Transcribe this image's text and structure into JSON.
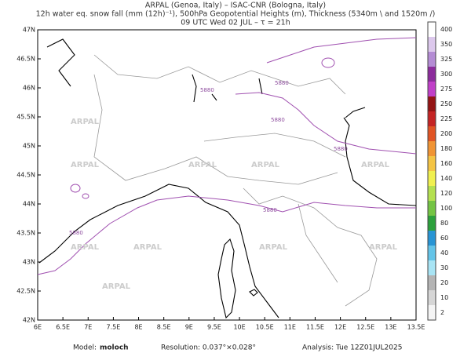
{
  "header": {
    "line1": "ARPAL (Genoa, Italy)  –  ISAC-CNR (Bologna, Italy)",
    "line2": "12h water eq. snow fall (mm (12h)⁻¹), 500hPa Geopotential Heights (m), Thickness (5340m \\ and 1520m /)",
    "line3": "09 UTC Wed 02 JUL  –  τ = 21h"
  },
  "map": {
    "xticks": [
      "6E",
      "6.5E",
      "7E",
      "7.5E",
      "8E",
      "8.5E",
      "9E",
      "9.5E",
      "10E",
      "10.5E",
      "11E",
      "11.5E",
      "12E",
      "12.5E",
      "13E",
      "13.5E"
    ],
    "yticks": [
      "42N",
      "42.5N",
      "43N",
      "43.5N",
      "44N",
      "44.5N",
      "45N",
      "45.5N",
      "46N",
      "46.5N",
      "47N"
    ],
    "contour_labels": [
      "5880",
      "5880",
      "5880",
      "5880",
      "5880",
      "5880"
    ],
    "watermark": "ARPAL"
  },
  "colorbar": {
    "labels": [
      2,
      10,
      20,
      30,
      40,
      60,
      80,
      100,
      120,
      140,
      160,
      180,
      200,
      225,
      250,
      275,
      300,
      325,
      350,
      400
    ],
    "colors": [
      "#f4f4f4",
      "#d6d6d6",
      "#b4b4b4",
      "#a8e4f4",
      "#64c4e8",
      "#2894d4",
      "#2ca03c",
      "#74c444",
      "#b4e050",
      "#f0f050",
      "#f4c444",
      "#f09434",
      "#e05424",
      "#c42424",
      "#941414",
      "#c040c8",
      "#8c2c9c",
      "#b48cd4",
      "#dcc8ec",
      "#ffffff"
    ]
  },
  "footer": {
    "model_label": "Model:",
    "model": "moloch",
    "resolution": "Resolution: 0.037°×0.028°",
    "analysis": "Analysis: Tue 12Z01JUL2025"
  }
}
